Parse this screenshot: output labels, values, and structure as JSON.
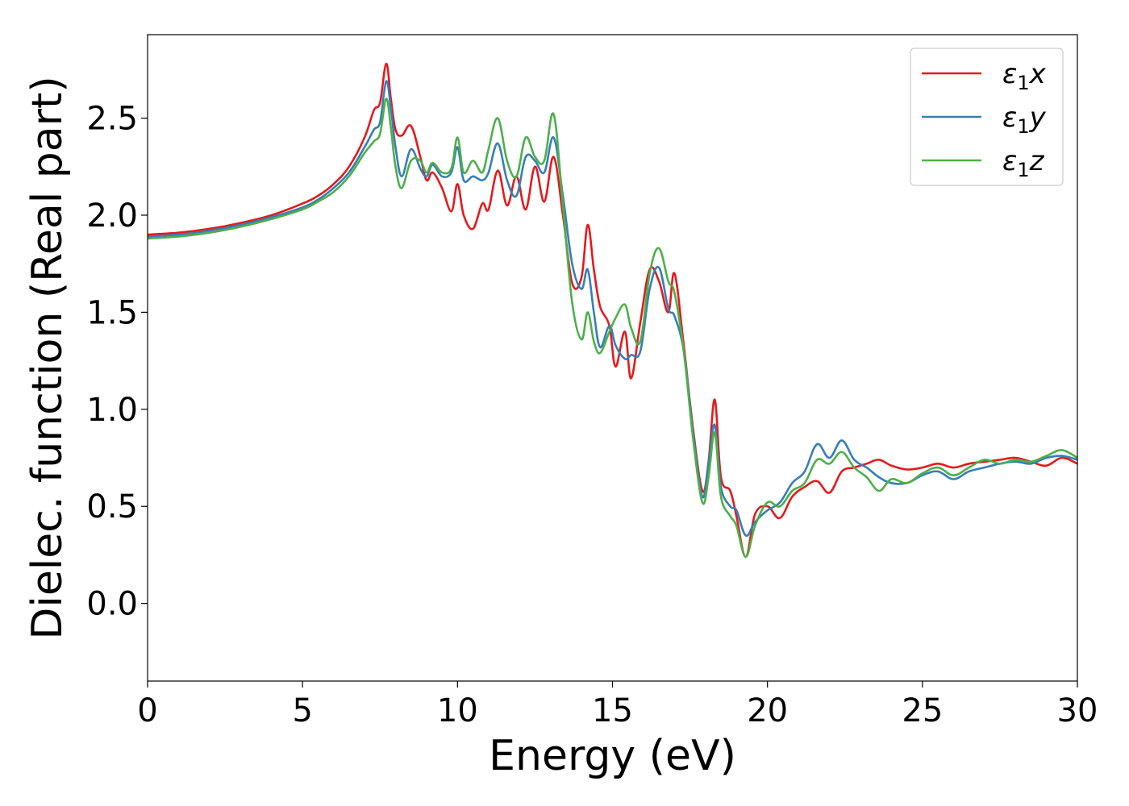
{
  "chart_data": {
    "type": "line",
    "title": "",
    "xlabel": "Energy (eV)",
    "ylabel": "Dielec. function (Real part)",
    "xlim": [
      0,
      30
    ],
    "ylim": [
      -0.4,
      2.93
    ],
    "xticks": [
      0,
      5,
      10,
      15,
      20,
      25,
      30
    ],
    "yticks": [
      0.0,
      0.5,
      1.0,
      1.5,
      2.0,
      2.5
    ],
    "xtick_labels": [
      "0",
      "5",
      "10",
      "15",
      "20",
      "25",
      "30"
    ],
    "ytick_labels": [
      "0.0",
      "0.5",
      "1.0",
      "1.5",
      "2.0",
      "2.5"
    ],
    "grid": false,
    "legend_position": "upper right",
    "series": [
      {
        "name": "ε1x",
        "legend_base": "ε",
        "legend_sub": "1",
        "legend_var": "x",
        "color": "#e41a1c",
        "x": [
          0,
          1,
          2,
          3,
          4,
          5,
          5.5,
          6,
          6.5,
          7,
          7.3,
          7.5,
          7.7,
          7.85,
          8.0,
          8.2,
          8.5,
          8.8,
          9.0,
          9.2,
          9.5,
          9.8,
          10.0,
          10.2,
          10.5,
          10.8,
          11.0,
          11.3,
          11.6,
          11.9,
          12.2,
          12.5,
          12.8,
          13.1,
          13.4,
          13.7,
          14.0,
          14.2,
          14.4,
          14.6,
          14.9,
          15.1,
          15.4,
          15.6,
          15.9,
          16.2,
          16.5,
          16.8,
          17.0,
          17.3,
          17.6,
          17.9,
          18.1,
          18.3,
          18.5,
          18.8,
          19.0,
          19.3,
          19.6,
          20.0,
          20.4,
          20.8,
          21.2,
          21.6,
          22.0,
          22.4,
          22.8,
          23.2,
          23.6,
          24.0,
          24.5,
          25.0,
          25.5,
          26.0,
          26.5,
          27.0,
          27.5,
          28.0,
          28.5,
          29.0,
          29.5,
          30.0
        ],
        "y": [
          1.9,
          1.91,
          1.93,
          1.96,
          2.0,
          2.06,
          2.1,
          2.16,
          2.25,
          2.4,
          2.54,
          2.58,
          2.78,
          2.6,
          2.44,
          2.41,
          2.46,
          2.3,
          2.18,
          2.22,
          2.14,
          2.02,
          2.16,
          2.0,
          1.93,
          2.06,
          2.03,
          2.23,
          2.05,
          2.2,
          2.03,
          2.25,
          2.07,
          2.3,
          2.0,
          1.65,
          1.68,
          1.95,
          1.72,
          1.53,
          1.43,
          1.22,
          1.4,
          1.16,
          1.45,
          1.72,
          1.66,
          1.5,
          1.7,
          1.33,
          0.9,
          0.58,
          0.73,
          1.05,
          0.65,
          0.58,
          0.45,
          0.24,
          0.46,
          0.5,
          0.44,
          0.55,
          0.6,
          0.63,
          0.57,
          0.68,
          0.7,
          0.72,
          0.74,
          0.71,
          0.69,
          0.7,
          0.72,
          0.7,
          0.72,
          0.73,
          0.74,
          0.75,
          0.73,
          0.71,
          0.75,
          0.72
        ]
      },
      {
        "name": "ε1y",
        "legend_base": "ε",
        "legend_sub": "1",
        "legend_var": "y",
        "color": "#377eb8",
        "x": [
          0,
          1,
          2,
          3,
          4,
          5,
          5.5,
          6,
          6.5,
          7,
          7.3,
          7.5,
          7.7,
          7.85,
          8.0,
          8.2,
          8.5,
          8.8,
          9.0,
          9.2,
          9.5,
          9.8,
          10.0,
          10.2,
          10.5,
          10.8,
          11.0,
          11.3,
          11.6,
          11.9,
          12.2,
          12.5,
          12.8,
          13.1,
          13.4,
          13.7,
          14.0,
          14.2,
          14.4,
          14.6,
          14.9,
          15.1,
          15.4,
          15.6,
          15.9,
          16.2,
          16.5,
          16.8,
          17.0,
          17.3,
          17.6,
          17.9,
          18.1,
          18.3,
          18.5,
          18.8,
          19.0,
          19.3,
          19.6,
          20.0,
          20.4,
          20.8,
          21.2,
          21.6,
          22.0,
          22.4,
          22.8,
          23.2,
          23.6,
          24.0,
          24.5,
          25.0,
          25.5,
          26.0,
          26.5,
          27.0,
          27.5,
          28.0,
          28.5,
          29.0,
          29.5,
          30.0
        ],
        "y": [
          1.89,
          1.9,
          1.92,
          1.95,
          1.99,
          2.04,
          2.08,
          2.14,
          2.22,
          2.35,
          2.44,
          2.48,
          2.69,
          2.55,
          2.35,
          2.2,
          2.34,
          2.24,
          2.2,
          2.26,
          2.2,
          2.22,
          2.35,
          2.18,
          2.2,
          2.18,
          2.22,
          2.37,
          2.18,
          2.1,
          2.3,
          2.28,
          2.22,
          2.4,
          2.1,
          1.75,
          1.62,
          1.72,
          1.5,
          1.32,
          1.43,
          1.33,
          1.26,
          1.28,
          1.3,
          1.62,
          1.73,
          1.52,
          1.48,
          1.3,
          0.88,
          0.55,
          0.72,
          0.92,
          0.6,
          0.5,
          0.48,
          0.35,
          0.42,
          0.48,
          0.52,
          0.62,
          0.68,
          0.82,
          0.75,
          0.84,
          0.74,
          0.7,
          0.65,
          0.62,
          0.62,
          0.66,
          0.68,
          0.64,
          0.68,
          0.7,
          0.72,
          0.73,
          0.72,
          0.75,
          0.76,
          0.74
        ]
      },
      {
        "name": "ε1z",
        "legend_base": "ε",
        "legend_sub": "1",
        "legend_var": "z",
        "color": "#4daf4a",
        "x": [
          0,
          1,
          2,
          3,
          4,
          5,
          5.5,
          6,
          6.5,
          7,
          7.3,
          7.5,
          7.7,
          7.85,
          8.0,
          8.2,
          8.5,
          8.8,
          9.0,
          9.2,
          9.5,
          9.8,
          10.0,
          10.2,
          10.5,
          10.8,
          11.0,
          11.3,
          11.6,
          11.9,
          12.2,
          12.5,
          12.8,
          13.1,
          13.4,
          13.7,
          14.0,
          14.2,
          14.4,
          14.6,
          14.9,
          15.1,
          15.4,
          15.6,
          15.9,
          16.2,
          16.5,
          16.8,
          17.0,
          17.3,
          17.6,
          17.9,
          18.1,
          18.3,
          18.5,
          18.8,
          19.0,
          19.3,
          19.6,
          20.0,
          20.4,
          20.8,
          21.2,
          21.6,
          22.0,
          22.4,
          22.8,
          23.2,
          23.6,
          24.0,
          24.5,
          25.0,
          25.5,
          26.0,
          26.5,
          27.0,
          27.5,
          28.0,
          28.5,
          29.0,
          29.5,
          30.0
        ],
        "y": [
          1.88,
          1.89,
          1.91,
          1.94,
          1.98,
          2.03,
          2.07,
          2.12,
          2.2,
          2.32,
          2.38,
          2.42,
          2.6,
          2.45,
          2.25,
          2.14,
          2.28,
          2.28,
          2.22,
          2.27,
          2.22,
          2.24,
          2.4,
          2.22,
          2.28,
          2.22,
          2.34,
          2.5,
          2.28,
          2.2,
          2.4,
          2.3,
          2.28,
          2.52,
          2.05,
          1.55,
          1.36,
          1.5,
          1.35,
          1.29,
          1.4,
          1.47,
          1.54,
          1.42,
          1.35,
          1.7,
          1.83,
          1.66,
          1.6,
          1.3,
          0.85,
          0.52,
          0.65,
          0.88,
          0.55,
          0.45,
          0.4,
          0.24,
          0.4,
          0.52,
          0.5,
          0.58,
          0.62,
          0.74,
          0.72,
          0.78,
          0.7,
          0.65,
          0.58,
          0.64,
          0.62,
          0.67,
          0.7,
          0.66,
          0.7,
          0.74,
          0.72,
          0.74,
          0.73,
          0.76,
          0.79,
          0.75
        ]
      }
    ]
  }
}
